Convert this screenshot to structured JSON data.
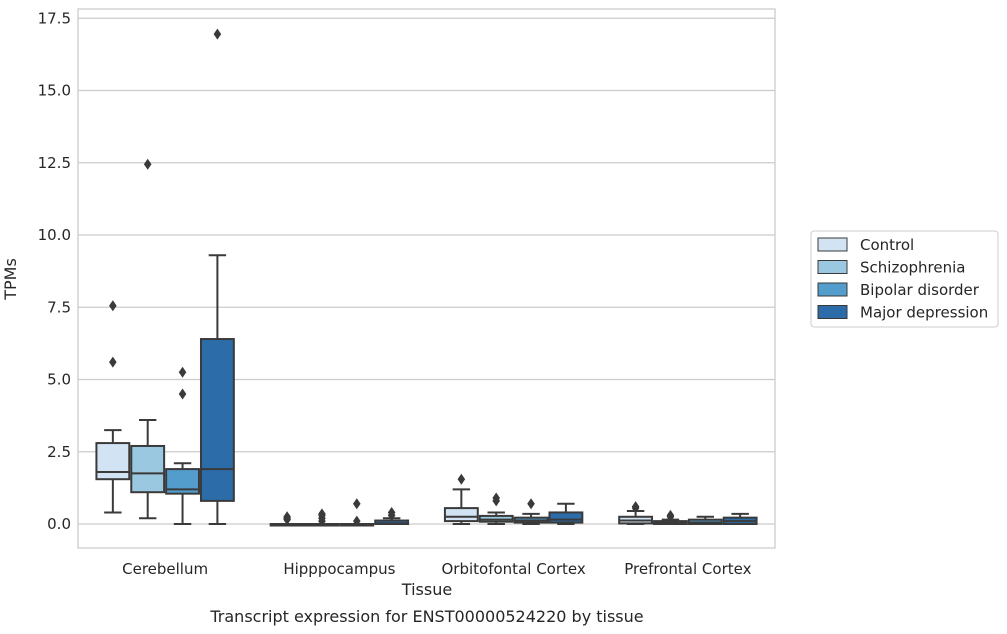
{
  "chart_data": {
    "type": "box",
    "xlabel": "Tissue",
    "ylabel": "TPMs",
    "caption": "Transcript expression for ENST00000524220 by tissue",
    "categories": [
      "Cerebellum",
      "Hipppocampus",
      "Orbitofontal Cortex",
      "Prefrontal Cortex"
    ],
    "ylim": [
      -0.8,
      17.8
    ],
    "yticks": [
      0.0,
      2.5,
      5.0,
      7.5,
      10.0,
      12.5,
      15.0,
      17.5
    ],
    "ytick_labels": [
      "0.0",
      "2.5",
      "5.0",
      "7.5",
      "10.0",
      "12.5",
      "15.0",
      "17.5"
    ],
    "grid": "horizontal",
    "legend_position": "right",
    "series": [
      {
        "name": "Control",
        "color": "#d2e3f3",
        "boxes": [
          {
            "whislo": 0.4,
            "q1": 1.55,
            "med": 1.8,
            "q3": 2.8,
            "whishi": 3.25,
            "fliers": [
              5.6,
              7.55
            ]
          },
          {
            "whislo": 0.0,
            "q1": 0.0,
            "med": 0.0,
            "q3": 0.0,
            "whishi": 0.0,
            "fliers": [
              0.15,
              0.2,
              0.25
            ]
          },
          {
            "whislo": 0.0,
            "q1": 0.1,
            "med": 0.25,
            "q3": 0.55,
            "whishi": 1.2,
            "fliers": [
              1.55
            ]
          },
          {
            "whislo": 0.0,
            "q1": 0.02,
            "med": 0.12,
            "q3": 0.25,
            "whishi": 0.45,
            "fliers": [
              0.55,
              0.6
            ]
          }
        ]
      },
      {
        "name": "Schizophrenia",
        "color": "#9ac8e0",
        "boxes": [
          {
            "whislo": 0.2,
            "q1": 1.1,
            "med": 1.75,
            "q3": 2.7,
            "whishi": 3.6,
            "fliers": [
              12.45
            ]
          },
          {
            "whislo": 0.0,
            "q1": 0.0,
            "med": 0.0,
            "q3": 0.0,
            "whishi": 0.0,
            "fliers": [
              0.1,
              0.2,
              0.3,
              0.35
            ]
          },
          {
            "whislo": 0.0,
            "q1": 0.08,
            "med": 0.15,
            "q3": 0.28,
            "whishi": 0.4,
            "fliers": [
              0.8,
              0.9
            ]
          },
          {
            "whislo": 0.0,
            "q1": 0.0,
            "med": 0.05,
            "q3": 0.1,
            "whishi": 0.15,
            "fliers": [
              0.25,
              0.3
            ]
          }
        ]
      },
      {
        "name": "Bipolar disorder",
        "color": "#529dcc",
        "boxes": [
          {
            "whislo": 0.0,
            "q1": 1.05,
            "med": 1.2,
            "q3": 1.9,
            "whishi": 2.1,
            "fliers": [
              4.5,
              5.25
            ]
          },
          {
            "whislo": 0.0,
            "q1": 0.0,
            "med": 0.0,
            "q3": 0.0,
            "whishi": 0.0,
            "fliers": [
              0.1,
              0.7
            ]
          },
          {
            "whislo": 0.0,
            "q1": 0.05,
            "med": 0.12,
            "q3": 0.22,
            "whishi": 0.35,
            "fliers": [
              0.7
            ]
          },
          {
            "whislo": 0.0,
            "q1": 0.0,
            "med": 0.05,
            "q3": 0.15,
            "whishi": 0.25,
            "fliers": []
          }
        ]
      },
      {
        "name": "Major depression",
        "color": "#2b6ca9",
        "boxes": [
          {
            "whislo": 0.0,
            "q1": 0.8,
            "med": 1.9,
            "q3": 6.4,
            "whishi": 9.3,
            "fliers": [
              16.95
            ]
          },
          {
            "whislo": 0.0,
            "q1": 0.0,
            "med": 0.02,
            "q3": 0.12,
            "whishi": 0.2,
            "fliers": [
              0.3,
              0.4
            ]
          },
          {
            "whislo": 0.0,
            "q1": 0.05,
            "med": 0.15,
            "q3": 0.4,
            "whishi": 0.7,
            "fliers": []
          },
          {
            "whislo": 0.0,
            "q1": 0.0,
            "med": 0.1,
            "q3": 0.22,
            "whishi": 0.35,
            "fliers": []
          }
        ]
      }
    ]
  }
}
